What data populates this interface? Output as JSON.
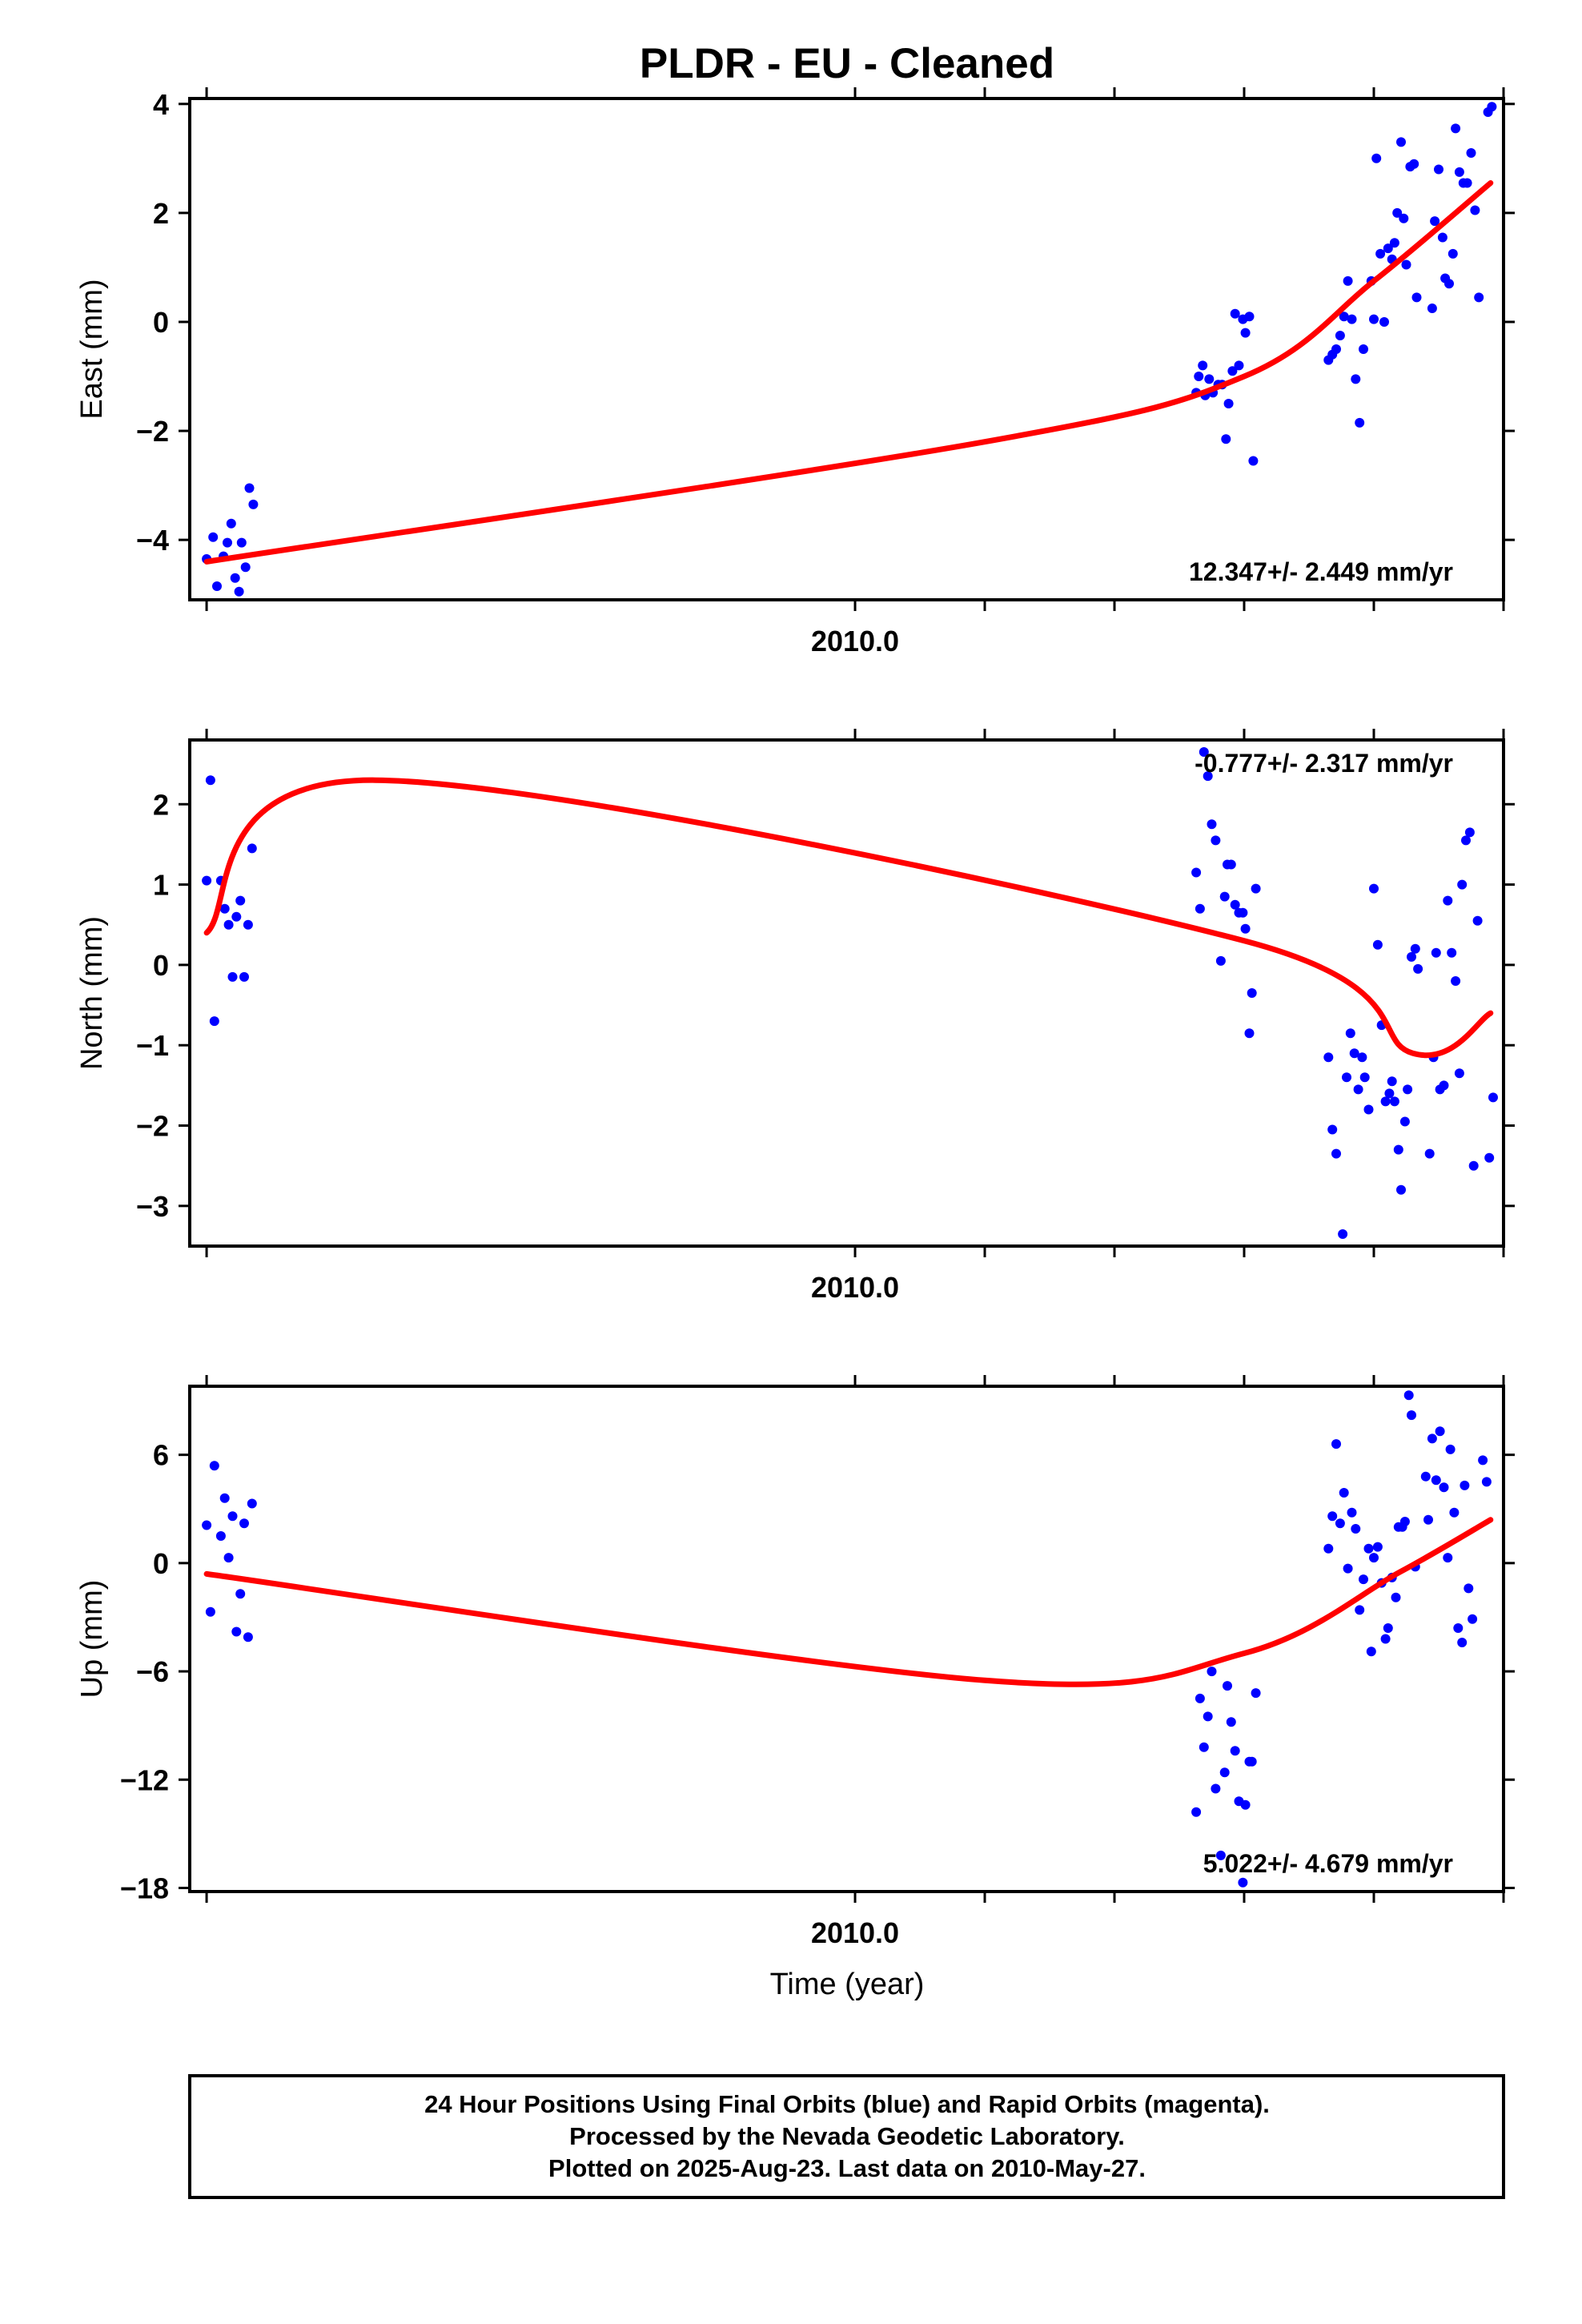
{
  "title": "PLDR  - EU - Cleaned",
  "xlabel": "Time (year)",
  "colors": {
    "final_orbits": "#0000ff",
    "fit_curve": "#ff0000",
    "frame": "#000000"
  },
  "footer": {
    "line1": "24 Hour Positions Using Final Orbits (blue) and Rapid Orbits (magenta).",
    "line2": "Processed by the Nevada Geodetic Laboratory.",
    "line3": "Plotted on 2025-Aug-23. Last data on 2010-May-27."
  },
  "chart_data": [
    {
      "type": "scatter",
      "name": "east",
      "ylabel": "East (mm)",
      "rate_label": "12.347+/- 2.449 mm/yr",
      "rate_position": "bottom-right",
      "xlim": [
        2009.487,
        2010.5
      ],
      "ylim": [
        -5.1,
        4.1
      ],
      "x_tick_labels": [
        {
          "x": 2010.0,
          "label": "2010.0"
        }
      ],
      "x_minor_ticks": [
        2009.5,
        2010.0,
        2010.1,
        2010.2,
        2010.3,
        2010.4,
        2010.5
      ],
      "y_ticks": [
        {
          "y": 4,
          "label": "4"
        },
        {
          "y": 2,
          "label": "2"
        },
        {
          "y": 0,
          "label": "0"
        },
        {
          "y": -2,
          "label": "−2"
        },
        {
          "y": -4,
          "label": "−4"
        }
      ],
      "points": [
        [
          2009.5,
          -4.35
        ],
        [
          2009.505,
          -3.95
        ],
        [
          2009.508,
          -4.85
        ],
        [
          2009.513,
          -4.3
        ],
        [
          2009.516,
          -4.05
        ],
        [
          2009.519,
          -3.7
        ],
        [
          2009.522,
          -4.7
        ],
        [
          2009.525,
          -4.95
        ],
        [
          2009.527,
          -4.05
        ],
        [
          2009.53,
          -4.5
        ],
        [
          2009.533,
          -3.05
        ],
        [
          2009.536,
          -3.35
        ],
        [
          2010.263,
          -1.3
        ],
        [
          2010.265,
          -1.0
        ],
        [
          2010.268,
          -0.8
        ],
        [
          2010.27,
          -1.35
        ],
        [
          2010.273,
          -1.05
        ],
        [
          2010.276,
          -1.3
        ],
        [
          2010.28,
          -1.15
        ],
        [
          2010.283,
          -1.15
        ],
        [
          2010.286,
          -2.15
        ],
        [
          2010.288,
          -1.5
        ],
        [
          2010.291,
          -0.9
        ],
        [
          2010.293,
          0.15
        ],
        [
          2010.296,
          -0.8
        ],
        [
          2010.299,
          0.05
        ],
        [
          2010.301,
          -0.2
        ],
        [
          2010.304,
          0.1
        ],
        [
          2010.307,
          -2.55
        ],
        [
          2010.365,
          -0.7
        ],
        [
          2010.368,
          -0.6
        ],
        [
          2010.371,
          -0.5
        ],
        [
          2010.374,
          -0.25
        ],
        [
          2010.377,
          0.1
        ],
        [
          2010.38,
          0.75
        ],
        [
          2010.383,
          0.05
        ],
        [
          2010.386,
          -1.05
        ],
        [
          2010.389,
          -1.85
        ],
        [
          2010.392,
          -0.5
        ],
        [
          2010.398,
          0.75
        ],
        [
          2010.4,
          0.05
        ],
        [
          2010.402,
          3.0
        ],
        [
          2010.405,
          1.25
        ],
        [
          2010.408,
          0.0
        ],
        [
          2010.411,
          1.35
        ],
        [
          2010.414,
          1.15
        ],
        [
          2010.416,
          1.45
        ],
        [
          2010.418,
          2.0
        ],
        [
          2010.421,
          3.3
        ],
        [
          2010.423,
          1.9
        ],
        [
          2010.425,
          1.05
        ],
        [
          2010.428,
          2.85
        ],
        [
          2010.431,
          2.9
        ],
        [
          2010.433,
          0.45
        ],
        [
          2010.445,
          0.25
        ],
        [
          2010.447,
          1.85
        ],
        [
          2010.45,
          2.8
        ],
        [
          2010.453,
          1.55
        ],
        [
          2010.455,
          0.8
        ],
        [
          2010.458,
          0.7
        ],
        [
          2010.461,
          1.25
        ],
        [
          2010.463,
          3.55
        ],
        [
          2010.466,
          2.75
        ],
        [
          2010.469,
          2.55
        ],
        [
          2010.472,
          2.55
        ],
        [
          2010.475,
          3.1
        ],
        [
          2010.478,
          2.05
        ],
        [
          2010.481,
          0.45
        ],
        [
          2010.488,
          3.85
        ],
        [
          2010.491,
          3.95
        ]
      ],
      "fit": [
        [
          2009.5,
          -4.4
        ],
        [
          2010.1,
          -2.2
        ],
        [
          2010.3,
          -1.0
        ],
        [
          2010.4,
          0.75
        ],
        [
          2010.49,
          2.55
        ]
      ]
    },
    {
      "type": "scatter",
      "name": "north",
      "ylabel": "North (mm)",
      "rate_label": "-0.777+/- 2.317 mm/yr",
      "rate_position": "top-right",
      "xlim": [
        2009.487,
        2010.5
      ],
      "ylim": [
        -3.5,
        2.8
      ],
      "x_tick_labels": [
        {
          "x": 2010.0,
          "label": "2010.0"
        }
      ],
      "x_minor_ticks": [
        2009.5,
        2010.0,
        2010.1,
        2010.2,
        2010.3,
        2010.4,
        2010.5
      ],
      "y_ticks": [
        {
          "y": 2,
          "label": "2"
        },
        {
          "y": 1,
          "label": "1"
        },
        {
          "y": 0,
          "label": "0"
        },
        {
          "y": -1,
          "label": "−1"
        },
        {
          "y": -2,
          "label": "−2"
        },
        {
          "y": -3,
          "label": "−3"
        }
      ],
      "points": [
        [
          2009.5,
          1.05
        ],
        [
          2009.503,
          2.3
        ],
        [
          2009.506,
          -0.7
        ],
        [
          2009.511,
          1.05
        ],
        [
          2009.514,
          0.7
        ],
        [
          2009.517,
          0.5
        ],
        [
          2009.52,
          -0.15
        ],
        [
          2009.523,
          0.6
        ],
        [
          2009.526,
          0.8
        ],
        [
          2009.529,
          -0.15
        ],
        [
          2009.532,
          0.5
        ],
        [
          2009.535,
          1.45
        ],
        [
          2010.263,
          1.15
        ],
        [
          2010.266,
          0.7
        ],
        [
          2010.269,
          2.65
        ],
        [
          2010.272,
          2.35
        ],
        [
          2010.275,
          1.75
        ],
        [
          2010.278,
          1.55
        ],
        [
          2010.282,
          0.05
        ],
        [
          2010.285,
          0.85
        ],
        [
          2010.287,
          1.25
        ],
        [
          2010.29,
          1.25
        ],
        [
          2010.293,
          0.75
        ],
        [
          2010.296,
          0.65
        ],
        [
          2010.299,
          0.65
        ],
        [
          2010.301,
          0.45
        ],
        [
          2010.304,
          -0.85
        ],
        [
          2010.306,
          -0.35
        ],
        [
          2010.309,
          0.95
        ],
        [
          2010.365,
          -1.15
        ],
        [
          2010.368,
          -2.05
        ],
        [
          2010.371,
          -2.35
        ],
        [
          2010.376,
          -3.35
        ],
        [
          2010.379,
          -1.4
        ],
        [
          2010.382,
          -0.85
        ],
        [
          2010.385,
          -1.1
        ],
        [
          2010.388,
          -1.55
        ],
        [
          2010.391,
          -1.15
        ],
        [
          2010.393,
          -1.4
        ],
        [
          2010.396,
          -1.8
        ],
        [
          2010.4,
          0.95
        ],
        [
          2010.403,
          0.25
        ],
        [
          2010.406,
          -0.75
        ],
        [
          2010.409,
          -1.7
        ],
        [
          2010.412,
          -1.6
        ],
        [
          2010.414,
          -1.45
        ],
        [
          2010.416,
          -1.7
        ],
        [
          2010.419,
          -2.3
        ],
        [
          2010.421,
          -2.8
        ],
        [
          2010.424,
          -1.95
        ],
        [
          2010.426,
          -1.55
        ],
        [
          2010.429,
          0.1
        ],
        [
          2010.432,
          0.2
        ],
        [
          2010.434,
          -0.05
        ],
        [
          2010.443,
          -2.35
        ],
        [
          2010.446,
          -1.15
        ],
        [
          2010.448,
          0.15
        ],
        [
          2010.451,
          -1.55
        ],
        [
          2010.454,
          -1.5
        ],
        [
          2010.457,
          0.8
        ],
        [
          2010.46,
          0.15
        ],
        [
          2010.463,
          -0.2
        ],
        [
          2010.466,
          -1.35
        ],
        [
          2010.468,
          1.0
        ],
        [
          2010.471,
          1.55
        ],
        [
          2010.474,
          1.65
        ],
        [
          2010.477,
          -2.5
        ],
        [
          2010.48,
          0.55
        ],
        [
          2010.489,
          -2.4
        ],
        [
          2010.492,
          -1.65
        ]
      ],
      "fit": [
        [
          2009.5,
          0.4
        ],
        [
          2009.63,
          2.3
        ],
        [
          2010.3,
          0.3
        ],
        [
          2010.43,
          -1.1
        ],
        [
          2010.49,
          -0.6
        ]
      ]
    },
    {
      "type": "scatter",
      "name": "up",
      "ylabel": "Up (mm)",
      "rate_label": "5.022+/- 4.679 mm/yr",
      "rate_position": "bottom-right",
      "xlim": [
        2009.487,
        2010.5
      ],
      "ylim": [
        -18.2,
        9.8
      ],
      "x_tick_labels": [
        {
          "x": 2010.0,
          "label": "2010.0"
        }
      ],
      "x_minor_ticks": [
        2009.5,
        2010.0,
        2010.1,
        2010.2,
        2010.3,
        2010.4,
        2010.5
      ],
      "y_ticks": [
        {
          "y": 6,
          "label": "6"
        },
        {
          "y": 0,
          "label": "0"
        },
        {
          "y": -6,
          "label": "−6"
        },
        {
          "y": -12,
          "label": "−12"
        },
        {
          "y": -18,
          "label": "−18"
        }
      ],
      "points": [
        [
          2009.5,
          2.1
        ],
        [
          2009.503,
          -2.7
        ],
        [
          2009.506,
          5.4
        ],
        [
          2009.511,
          1.5
        ],
        [
          2009.514,
          3.6
        ],
        [
          2009.517,
          0.3
        ],
        [
          2009.52,
          2.6
        ],
        [
          2009.523,
          -3.8
        ],
        [
          2009.526,
          -1.7
        ],
        [
          2009.529,
          2.2
        ],
        [
          2009.532,
          -4.1
        ],
        [
          2009.535,
          3.3
        ],
        [
          2010.263,
          -13.8
        ],
        [
          2010.266,
          -7.5
        ],
        [
          2010.269,
          -10.2
        ],
        [
          2010.272,
          -8.5
        ],
        [
          2010.275,
          -6.0
        ],
        [
          2010.278,
          -12.5
        ],
        [
          2010.282,
          -16.2
        ],
        [
          2010.285,
          -11.6
        ],
        [
          2010.287,
          -6.8
        ],
        [
          2010.29,
          -8.8
        ],
        [
          2010.293,
          -10.4
        ],
        [
          2010.296,
          -13.2
        ],
        [
          2010.299,
          -17.7
        ],
        [
          2010.301,
          -13.4
        ],
        [
          2010.304,
          -11.0
        ],
        [
          2010.306,
          -11.0
        ],
        [
          2010.309,
          -7.2
        ],
        [
          2010.365,
          0.8
        ],
        [
          2010.368,
          2.6
        ],
        [
          2010.371,
          6.6
        ],
        [
          2010.374,
          2.2
        ],
        [
          2010.377,
          3.9
        ],
        [
          2010.38,
          -0.3
        ],
        [
          2010.383,
          2.8
        ],
        [
          2010.386,
          1.9
        ],
        [
          2010.389,
          -2.6
        ],
        [
          2010.392,
          -0.9
        ],
        [
          2010.396,
          0.8
        ],
        [
          2010.398,
          -4.9
        ],
        [
          2010.4,
          0.3
        ],
        [
          2010.403,
          0.9
        ],
        [
          2010.406,
          -1.1
        ],
        [
          2010.409,
          -4.2
        ],
        [
          2010.411,
          -3.6
        ],
        [
          2010.414,
          -0.8
        ],
        [
          2010.417,
          -1.9
        ],
        [
          2010.419,
          2.0
        ],
        [
          2010.422,
          2.0
        ],
        [
          2010.424,
          2.3
        ],
        [
          2010.427,
          9.3
        ],
        [
          2010.429,
          8.2
        ],
        [
          2010.432,
          -0.2
        ],
        [
          2010.44,
          4.8
        ],
        [
          2010.442,
          2.4
        ],
        [
          2010.445,
          6.9
        ],
        [
          2010.448,
          4.6
        ],
        [
          2010.451,
          7.3
        ],
        [
          2010.454,
          4.2
        ],
        [
          2010.457,
          0.3
        ],
        [
          2010.459,
          6.3
        ],
        [
          2010.462,
          2.8
        ],
        [
          2010.465,
          -3.6
        ],
        [
          2010.468,
          -4.4
        ],
        [
          2010.47,
          4.3
        ],
        [
          2010.473,
          -1.4
        ],
        [
          2010.476,
          -3.1
        ],
        [
          2010.484,
          5.7
        ],
        [
          2010.487,
          4.5
        ]
      ],
      "fit": [
        [
          2009.5,
          -0.6
        ],
        [
          2010.1,
          -6.5
        ],
        [
          2010.3,
          -5.0
        ],
        [
          2010.42,
          -0.5
        ],
        [
          2010.49,
          2.4
        ]
      ]
    }
  ]
}
